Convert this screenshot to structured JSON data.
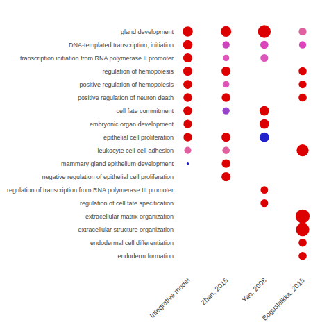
{
  "chart_data": {
    "type": "dot",
    "x": [
      "Integrative model",
      "Zhan, 2015",
      "Yao, 2008",
      "Boguslałkka, 2015"
    ],
    "y": [
      "gland development",
      "DNA-templated transcription, initiation",
      "transcription initiation from RNA polymerase II promoter",
      "regulation of hemopoiesis",
      "positive regulation of hemopoiesis",
      "positive regulation of neuron death",
      "cell fate commitment",
      "embryonic organ development",
      "epithelial cell proliferation",
      "leukocyte cell-cell adhesion",
      "mammary gland epithelium development",
      "negative regulation of epithelial cell proliferation",
      "regulation of transcription from RNA polymerase III promoter",
      "regulation of cell fate specification",
      "extracellular matrix organization",
      "extracellular structure organization",
      "endodermal cell differentiation",
      "endoderm formation"
    ],
    "points": [
      {
        "y": "gland development",
        "x": "Integrative model",
        "size": 110,
        "color": "#dd0000"
      },
      {
        "y": "gland development",
        "x": "Zhan, 2015",
        "size": 120,
        "color": "#dd0000"
      },
      {
        "y": "gland development",
        "x": "Yao, 2008",
        "size": 175,
        "color": "#dd0000"
      },
      {
        "y": "gland development",
        "x": "Boguslałkka, 2015",
        "size": 65,
        "color": "#e060a0"
      },
      {
        "y": "DNA-templated transcription, initiation",
        "x": "Integrative model",
        "size": 95,
        "color": "#dd0000"
      },
      {
        "y": "DNA-templated transcription, initiation",
        "x": "Zhan, 2015",
        "size": 55,
        "color": "#cc44bb"
      },
      {
        "y": "DNA-templated transcription, initiation",
        "x": "Yao, 2008",
        "size": 70,
        "color": "#dd44bb"
      },
      {
        "y": "DNA-templated transcription, initiation",
        "x": "Boguslałkka, 2015",
        "size": 55,
        "color": "#dd44bb"
      },
      {
        "y": "transcription initiation from RNA polymerase II promoter",
        "x": "Integrative model",
        "size": 90,
        "color": "#dd0000"
      },
      {
        "y": "transcription initiation from RNA polymerase II promoter",
        "x": "Zhan, 2015",
        "size": 45,
        "color": "#dd55bb"
      },
      {
        "y": "transcription initiation from RNA polymerase II promoter",
        "x": "Yao, 2008",
        "size": 65,
        "color": "#dd55bb"
      },
      {
        "y": "regulation of hemopoiesis",
        "x": "Integrative model",
        "size": 90,
        "color": "#dd0000"
      },
      {
        "y": "regulation of hemopoiesis",
        "x": "Zhan, 2015",
        "size": 90,
        "color": "#dd0000"
      },
      {
        "y": "regulation of hemopoiesis",
        "x": "Boguslałkka, 2015",
        "size": 70,
        "color": "#dd0000"
      },
      {
        "y": "positive regulation of hemopoiesis",
        "x": "Integrative model",
        "size": 85,
        "color": "#dd0000"
      },
      {
        "y": "positive regulation of hemopoiesis",
        "x": "Zhan, 2015",
        "size": 48,
        "color": "#dd55bb"
      },
      {
        "y": "positive regulation of hemopoiesis",
        "x": "Boguslałkka, 2015",
        "size": 65,
        "color": "#dd0000"
      },
      {
        "y": "positive regulation of neuron death",
        "x": "Integrative model",
        "size": 80,
        "color": "#dd0000"
      },
      {
        "y": "positive regulation of neuron death",
        "x": "Zhan, 2015",
        "size": 80,
        "color": "#dd0000"
      },
      {
        "y": "positive regulation of neuron death",
        "x": "Boguslałkka, 2015",
        "size": 70,
        "color": "#dd0000"
      },
      {
        "y": "cell fate commitment",
        "x": "Integrative model",
        "size": 85,
        "color": "#dd0000"
      },
      {
        "y": "cell fate commitment",
        "x": "Zhan, 2015",
        "size": 55,
        "color": "#9944cc"
      },
      {
        "y": "cell fate commitment",
        "x": "Yao, 2008",
        "size": 100,
        "color": "#dd0000"
      },
      {
        "y": "embryonic organ development",
        "x": "Integrative model",
        "size": 80,
        "color": "#dd0000"
      },
      {
        "y": "embryonic organ development",
        "x": "Yao, 2008",
        "size": 100,
        "color": "#dd0000"
      },
      {
        "y": "epithelial cell proliferation",
        "x": "Integrative model",
        "size": 80,
        "color": "#dd0000"
      },
      {
        "y": "epithelial cell proliferation",
        "x": "Zhan, 2015",
        "size": 90,
        "color": "#dd0000"
      },
      {
        "y": "epithelial cell proliferation",
        "x": "Yao, 2008",
        "size": 100,
        "color": "#2222cc"
      },
      {
        "y": "leukocyte cell-cell adhesion",
        "x": "Integrative model",
        "size": 52,
        "color": "#e060a0"
      },
      {
        "y": "leukocyte cell-cell adhesion",
        "x": "Zhan, 2015",
        "size": 58,
        "color": "#e060a0"
      },
      {
        "y": "leukocyte cell-cell adhesion",
        "x": "Boguslałkka, 2015",
        "size": 155,
        "color": "#dd0000"
      },
      {
        "y": "mammary gland epithelium development",
        "x": "Integrative model",
        "size": 6,
        "color": "#2222cc"
      },
      {
        "y": "mammary gland epithelium development",
        "x": "Zhan, 2015",
        "size": 80,
        "color": "#dd0000"
      },
      {
        "y": "negative regulation of epithelial cell proliferation",
        "x": "Zhan, 2015",
        "size": 90,
        "color": "#dd0000"
      },
      {
        "y": "regulation of transcription from RNA polymerase III promoter",
        "x": "Yao, 2008",
        "size": 60,
        "color": "#dd0000"
      },
      {
        "y": "regulation of cell fate specification",
        "x": "Yao, 2008",
        "size": 65,
        "color": "#dd0000"
      },
      {
        "y": "extracellular matrix organization",
        "x": "Boguslałkka, 2015",
        "size": 210,
        "color": "#dd0000"
      },
      {
        "y": "extracellular structure organization",
        "x": "Boguslałkka, 2015",
        "size": 190,
        "color": "#dd0000"
      },
      {
        "y": "endodermal cell differentiation",
        "x": "Boguslałkka, 2015",
        "size": 70,
        "color": "#dd0000"
      },
      {
        "y": "endoderm formation",
        "x": "Boguslałkka, 2015",
        "size": 70,
        "color": "#dd0000"
      }
    ],
    "grid": false
  }
}
